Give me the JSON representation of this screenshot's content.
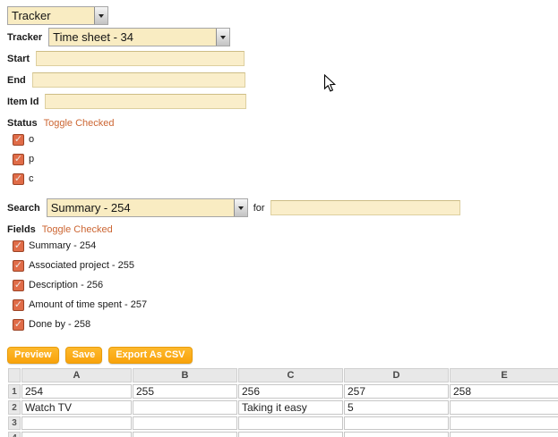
{
  "colors": {
    "field_bg": "#faeeca",
    "select_bg": "#f9ecc2",
    "link": "#cc6633",
    "checkbox_bg": "#e06c48",
    "button_bg": "#f9a30b",
    "grid_header_bg": "#e8e8e8"
  },
  "top_dropdown": {
    "value": "Tracker"
  },
  "form": {
    "tracker": {
      "label": "Tracker",
      "value": "Time sheet - 34"
    },
    "start": {
      "label": "Start",
      "value": ""
    },
    "end": {
      "label": "End",
      "value": ""
    },
    "item_id": {
      "label": "Item Id",
      "value": ""
    },
    "status": {
      "label": "Status",
      "toggle_link": "Toggle Checked",
      "options": [
        {
          "label": "o",
          "checked": true
        },
        {
          "label": "p",
          "checked": true
        },
        {
          "label": "c",
          "checked": true
        }
      ]
    },
    "search": {
      "label": "Search",
      "selected": "Summary - 254",
      "for_label": "for",
      "query_value": ""
    },
    "fields": {
      "label": "Fields",
      "toggle_link": "Toggle Checked",
      "options": [
        {
          "label": "Summary - 254",
          "checked": true
        },
        {
          "label": "Associated project - 255",
          "checked": true
        },
        {
          "label": "Description - 256",
          "checked": true
        },
        {
          "label": "Amount of time spent - 257",
          "checked": true
        },
        {
          "label": "Done by - 258",
          "checked": true
        }
      ]
    }
  },
  "actions": {
    "preview": "Preview",
    "save": "Save",
    "export_csv": "Export As CSV"
  },
  "spreadsheet": {
    "column_headers": [
      "A",
      "B",
      "C",
      "D",
      "E"
    ],
    "rows": [
      {
        "num": "1",
        "cells": [
          "254",
          "255",
          "256",
          "257",
          "258"
        ]
      },
      {
        "num": "2",
        "cells": [
          "Watch TV",
          "",
          "Taking it easy",
          "5",
          ""
        ]
      },
      {
        "num": "3",
        "cells": [
          "",
          "",
          "",
          "",
          ""
        ]
      },
      {
        "num": "4",
        "cells": [
          "",
          "",
          "",
          "",
          ""
        ]
      }
    ]
  }
}
